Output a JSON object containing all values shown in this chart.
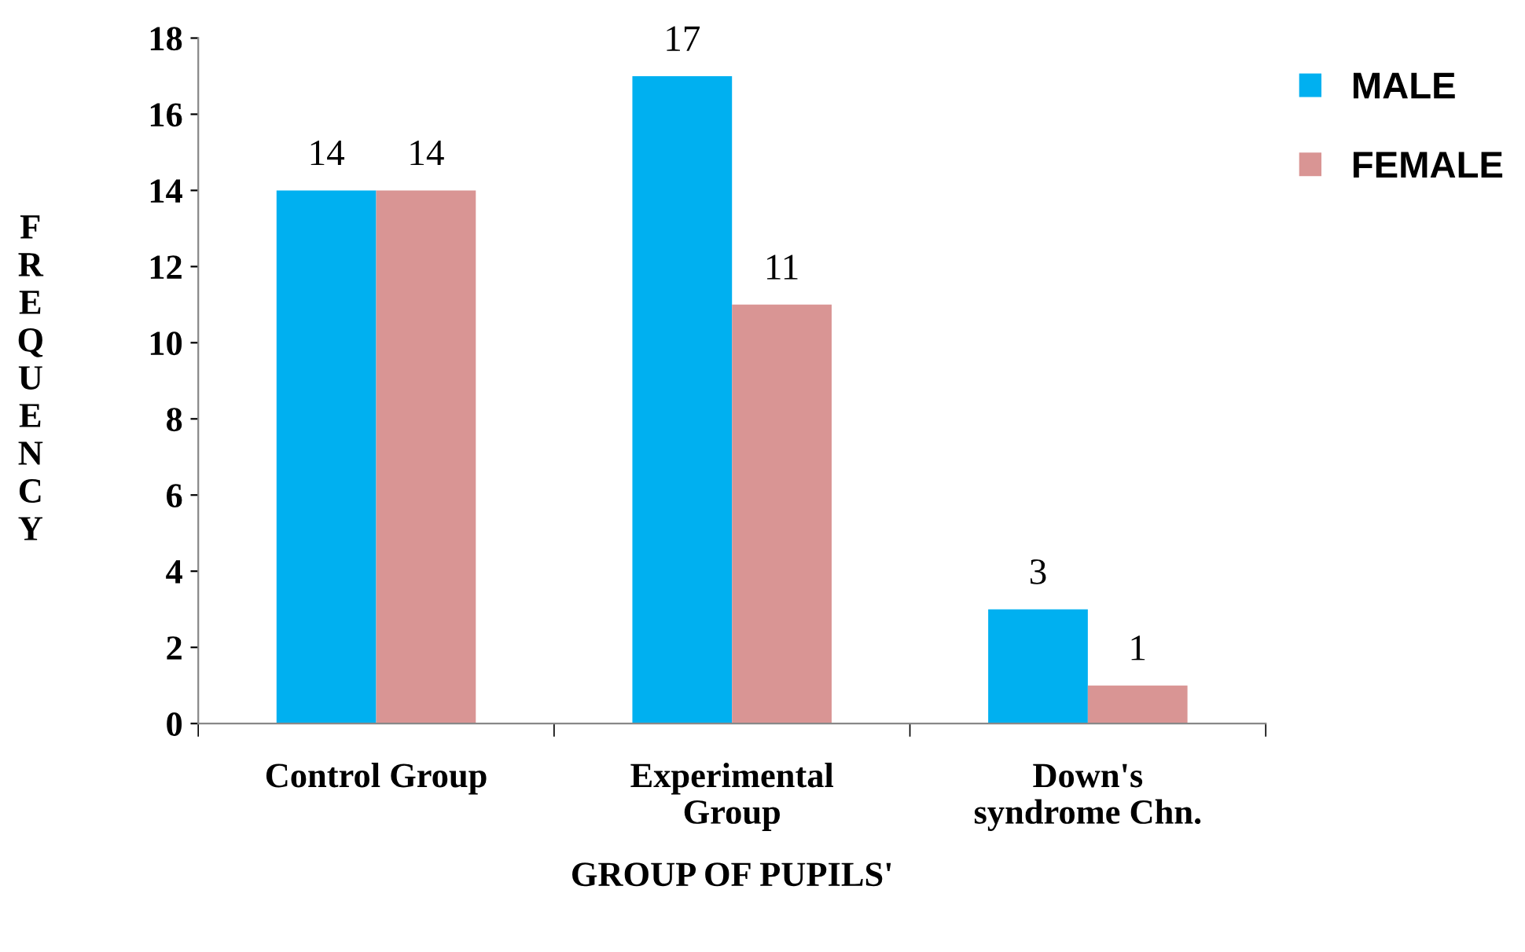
{
  "chart_data": {
    "type": "bar",
    "xlabel": "GROUP OF PUPILS'",
    "ylabel": "FREQUENCY",
    "categories": [
      "Control Group",
      "Experimental\nGroup",
      "Down's\nsyndrome Chn."
    ],
    "series": [
      {
        "name": "MALE",
        "color": "#00b0f0",
        "values": [
          14,
          17,
          3
        ]
      },
      {
        "name": "FEMALE",
        "color": "#d99594",
        "values": [
          14,
          11,
          1
        ]
      }
    ],
    "ylim": [
      0,
      18
    ],
    "yticks": [
      0,
      2,
      4,
      6,
      8,
      10,
      12,
      14,
      16,
      18
    ],
    "data_labels": true,
    "grid": false,
    "legend": "top right"
  }
}
